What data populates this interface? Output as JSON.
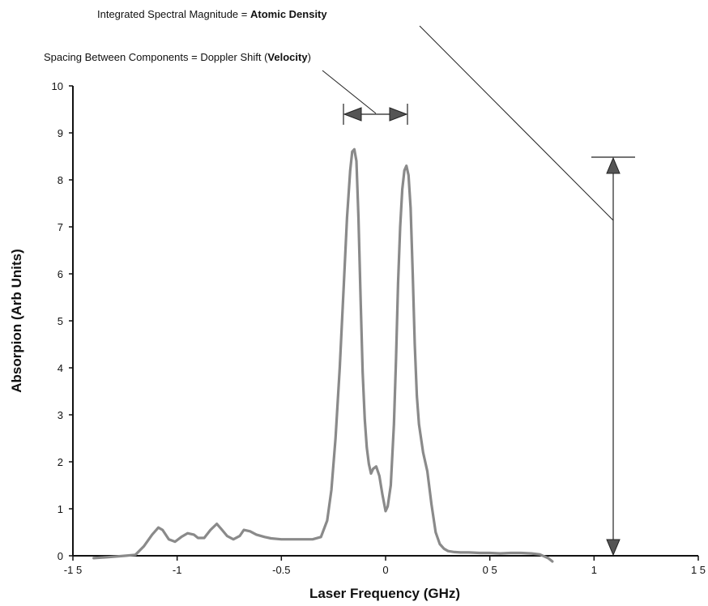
{
  "chart_data": {
    "type": "line",
    "xlabel": "Laser Frequency (GHz)",
    "ylabel": "Absorpion (Arb Units)",
    "xlim": [
      -1.5,
      1.5
    ],
    "ylim": [
      0,
      10
    ],
    "grid": false,
    "x_ticks": [
      -1.5,
      -1,
      -0.5,
      0,
      0.5,
      1,
      1.5
    ],
    "x_tick_labels": [
      "-1 5",
      "-1",
      "-0.5",
      "0",
      "0 5",
      "1",
      "1 5"
    ],
    "y_ticks": [
      0,
      1,
      2,
      3,
      4,
      5,
      6,
      7,
      8,
      9,
      10
    ],
    "y_tick_labels": [
      "0",
      "1",
      "2",
      "3",
      "4",
      "5",
      "6",
      "7",
      "8",
      "9",
      "10"
    ],
    "series": [
      {
        "color": "#8a8a8a",
        "x": [
          -1.4,
          -1.33,
          -1.25,
          -1.2,
          -1.16,
          -1.12,
          -1.09,
          -1.07,
          -1.04,
          -1.01,
          -0.98,
          -0.95,
          -0.92,
          -0.9,
          -0.87,
          -0.84,
          -0.81,
          -0.79,
          -0.76,
          -0.73,
          -0.7,
          -0.68,
          -0.65,
          -0.62,
          -0.58,
          -0.55,
          -0.5,
          -0.45,
          -0.4,
          -0.35,
          -0.31,
          -0.28,
          -0.26,
          -0.24,
          -0.22,
          -0.2,
          -0.185,
          -0.17,
          -0.16,
          -0.15,
          -0.14,
          -0.13,
          -0.12,
          -0.11,
          -0.1,
          -0.09,
          -0.08,
          -0.07,
          -0.06,
          -0.045,
          -0.03,
          -0.015,
          0.0,
          0.01,
          0.025,
          0.04,
          0.05,
          0.06,
          0.07,
          0.08,
          0.09,
          0.1,
          0.11,
          0.12,
          0.13,
          0.14,
          0.15,
          0.16,
          0.18,
          0.2,
          0.22,
          0.24,
          0.26,
          0.28,
          0.3,
          0.33,
          0.36,
          0.4,
          0.45,
          0.5,
          0.55,
          0.6,
          0.65,
          0.7,
          0.74,
          0.78,
          0.8
        ],
        "values": [
          -0.05,
          -0.03,
          0.0,
          0.02,
          0.2,
          0.45,
          0.6,
          0.55,
          0.35,
          0.3,
          0.4,
          0.48,
          0.45,
          0.38,
          0.38,
          0.55,
          0.68,
          0.58,
          0.42,
          0.35,
          0.42,
          0.55,
          0.52,
          0.45,
          0.4,
          0.37,
          0.35,
          0.35,
          0.35,
          0.35,
          0.4,
          0.75,
          1.4,
          2.5,
          4.0,
          5.8,
          7.2,
          8.2,
          8.6,
          8.65,
          8.4,
          7.2,
          5.5,
          3.9,
          2.9,
          2.3,
          1.95,
          1.75,
          1.85,
          1.9,
          1.7,
          1.3,
          0.95,
          1.05,
          1.5,
          2.8,
          4.2,
          5.8,
          7.0,
          7.8,
          8.2,
          8.3,
          8.1,
          7.4,
          6.0,
          4.5,
          3.4,
          2.8,
          2.2,
          1.8,
          1.1,
          0.5,
          0.25,
          0.15,
          0.1,
          0.08,
          0.07,
          0.07,
          0.06,
          0.06,
          0.05,
          0.06,
          0.06,
          0.05,
          0.03,
          -0.05,
          -0.12
        ]
      }
    ]
  },
  "annotations": {
    "density_label_prefix": "Integrated Spectral Magnitude = ",
    "density_label_bold": "Atomic Density",
    "spacing_label_prefix": "Spacing Between Components = Doppler Shift (",
    "spacing_label_bold": "Velocity",
    "spacing_label_suffix": ")"
  }
}
